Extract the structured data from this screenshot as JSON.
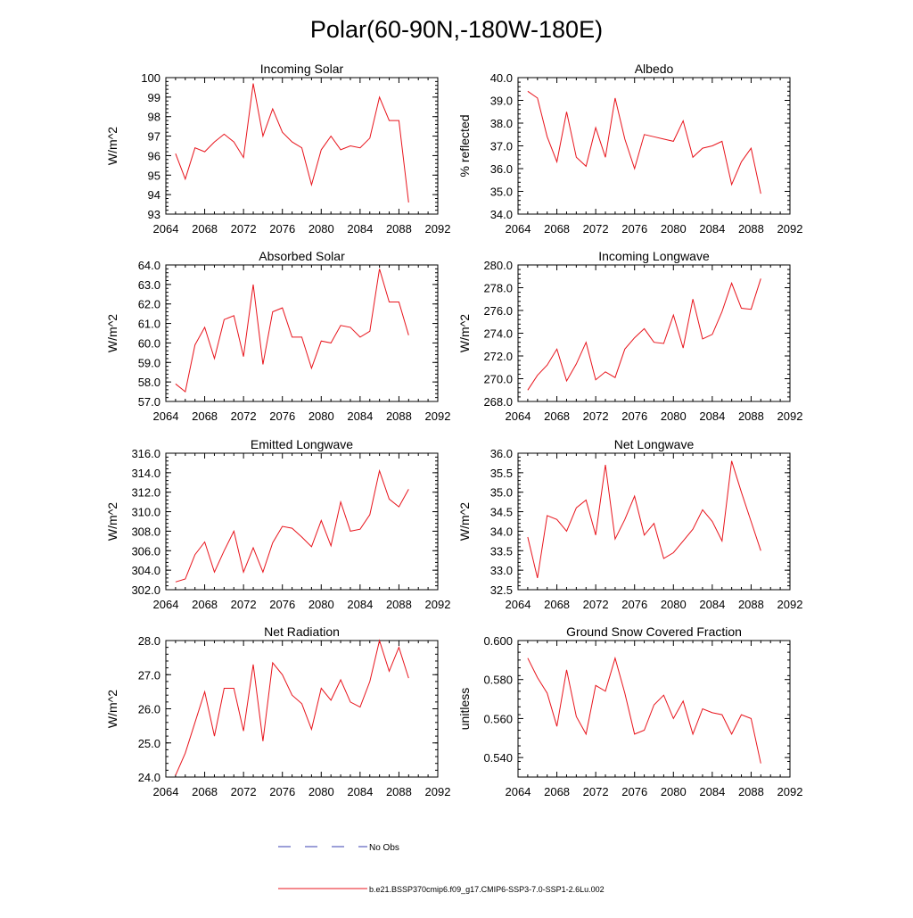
{
  "figure_title": "Polar(60-90N,-180W-180E)",
  "colors": {
    "model_line": "#e8141c",
    "obs_line": "#3a3fb0",
    "axis": "#000000"
  },
  "legend": {
    "obs_label": "No Obs",
    "model_label": "b.e21.BSSP370cmip6.f09_g17.CMIP6-SSP3-7.0-SSP1-2.6Lu.002"
  },
  "chart_data": [
    {
      "type": "line",
      "title": "Incoming Solar",
      "ylabel": "W/m^2",
      "xlim": [
        2064,
        2092
      ],
      "ylim": [
        93,
        100
      ],
      "xticks": [
        "2064",
        "2068",
        "2072",
        "2076",
        "2080",
        "2084",
        "2088",
        "2092"
      ],
      "yticks": [
        "93",
        "94",
        "95",
        "96",
        "97",
        "98",
        "99",
        "100"
      ],
      "x": [
        2065,
        2066,
        2067,
        2068,
        2069,
        2070,
        2071,
        2072,
        2073,
        2074,
        2075,
        2076,
        2077,
        2078,
        2079,
        2080,
        2081,
        2082,
        2083,
        2084,
        2085,
        2086,
        2087,
        2088,
        2089
      ],
      "series": [
        {
          "values": [
            96.1,
            94.8,
            96.4,
            96.2,
            96.7,
            97.1,
            96.7,
            95.9,
            99.7,
            97.0,
            98.4,
            97.2,
            96.7,
            96.4,
            94.5,
            96.3,
            97.0,
            96.3,
            96.5,
            96.4,
            96.9,
            99.0,
            97.8,
            97.8,
            93.6
          ]
        }
      ]
    },
    {
      "type": "line",
      "title": "Albedo",
      "ylabel": "% reflected",
      "xlim": [
        2064,
        2092
      ],
      "ylim": [
        34.0,
        40.0
      ],
      "xticks": [
        "2064",
        "2068",
        "2072",
        "2076",
        "2080",
        "2084",
        "2088",
        "2092"
      ],
      "yticks": [
        "34.0",
        "35.0",
        "36.0",
        "37.0",
        "38.0",
        "39.0",
        "40.0"
      ],
      "x": [
        2065,
        2066,
        2067,
        2068,
        2069,
        2070,
        2071,
        2072,
        2073,
        2074,
        2075,
        2076,
        2077,
        2078,
        2079,
        2080,
        2081,
        2082,
        2083,
        2084,
        2085,
        2086,
        2087,
        2088,
        2089
      ],
      "series": [
        {
          "values": [
            39.4,
            39.1,
            37.4,
            36.3,
            38.5,
            36.5,
            36.1,
            37.8,
            36.5,
            39.1,
            37.3,
            36.0,
            37.5,
            37.4,
            37.3,
            37.2,
            38.1,
            36.5,
            36.9,
            37.0,
            37.2,
            35.3,
            36.3,
            36.9,
            34.9
          ]
        }
      ]
    },
    {
      "type": "line",
      "title": "Absorbed Solar",
      "ylabel": "W/m^2",
      "xlim": [
        2064,
        2092
      ],
      "ylim": [
        57.0,
        64.0
      ],
      "xticks": [
        "2064",
        "2068",
        "2072",
        "2076",
        "2080",
        "2084",
        "2088",
        "2092"
      ],
      "yticks": [
        "57.0",
        "58.0",
        "59.0",
        "60.0",
        "61.0",
        "62.0",
        "63.0",
        "64.0"
      ],
      "x": [
        2065,
        2066,
        2067,
        2068,
        2069,
        2070,
        2071,
        2072,
        2073,
        2074,
        2075,
        2076,
        2077,
        2078,
        2079,
        2080,
        2081,
        2082,
        2083,
        2084,
        2085,
        2086,
        2087,
        2088,
        2089
      ],
      "series": [
        {
          "values": [
            57.9,
            57.5,
            59.9,
            60.8,
            59.2,
            61.2,
            61.4,
            59.3,
            63.0,
            58.9,
            61.6,
            61.8,
            60.3,
            60.3,
            58.7,
            60.1,
            60.0,
            60.9,
            60.8,
            60.3,
            60.6,
            63.8,
            62.1,
            62.1,
            60.4
          ]
        }
      ]
    },
    {
      "type": "line",
      "title": "Incoming Longwave",
      "ylabel": "W/m^2",
      "xlim": [
        2064,
        2092
      ],
      "ylim": [
        268.0,
        280.0
      ],
      "xticks": [
        "2064",
        "2068",
        "2072",
        "2076",
        "2080",
        "2084",
        "2088",
        "2092"
      ],
      "yticks": [
        "268.0",
        "270.0",
        "272.0",
        "274.0",
        "276.0",
        "278.0",
        "280.0"
      ],
      "x": [
        2065,
        2066,
        2067,
        2068,
        2069,
        2070,
        2071,
        2072,
        2073,
        2074,
        2075,
        2076,
        2077,
        2078,
        2079,
        2080,
        2081,
        2082,
        2083,
        2084,
        2085,
        2086,
        2087,
        2088,
        2089
      ],
      "series": [
        {
          "values": [
            269.0,
            270.3,
            271.2,
            272.6,
            269.8,
            271.3,
            273.2,
            269.9,
            270.6,
            270.1,
            272.6,
            273.6,
            274.4,
            273.2,
            273.1,
            275.6,
            272.7,
            277.0,
            273.5,
            273.9,
            275.9,
            278.4,
            276.2,
            276.1,
            278.8
          ]
        }
      ]
    },
    {
      "type": "line",
      "title": "Emitted Longwave",
      "ylabel": "W/m^2",
      "xlim": [
        2064,
        2092
      ],
      "ylim": [
        302.0,
        316.0
      ],
      "xticks": [
        "2064",
        "2068",
        "2072",
        "2076",
        "2080",
        "2084",
        "2088",
        "2092"
      ],
      "yticks": [
        "302.0",
        "304.0",
        "306.0",
        "308.0",
        "310.0",
        "312.0",
        "314.0",
        "316.0"
      ],
      "x": [
        2065,
        2066,
        2067,
        2068,
        2069,
        2070,
        2071,
        2072,
        2073,
        2074,
        2075,
        2076,
        2077,
        2078,
        2079,
        2080,
        2081,
        2082,
        2083,
        2084,
        2085,
        2086,
        2087,
        2088,
        2089
      ],
      "series": [
        {
          "values": [
            302.8,
            303.1,
            305.6,
            306.9,
            303.8,
            306.0,
            308.0,
            303.8,
            306.3,
            303.8,
            306.8,
            308.5,
            308.3,
            307.4,
            306.4,
            309.1,
            306.5,
            311.0,
            308.0,
            308.2,
            309.7,
            314.2,
            311.3,
            310.5,
            312.3
          ]
        }
      ]
    },
    {
      "type": "line",
      "title": "Net Longwave",
      "ylabel": "W/m^2",
      "xlim": [
        2064,
        2092
      ],
      "ylim": [
        32.5,
        36.0
      ],
      "xticks": [
        "2064",
        "2068",
        "2072",
        "2076",
        "2080",
        "2084",
        "2088",
        "2092"
      ],
      "yticks": [
        "32.5",
        "33.0",
        "33.5",
        "34.0",
        "34.5",
        "35.0",
        "35.5",
        "36.0"
      ],
      "x": [
        2065,
        2066,
        2067,
        2068,
        2069,
        2070,
        2071,
        2072,
        2073,
        2074,
        2075,
        2076,
        2077,
        2078,
        2079,
        2080,
        2081,
        2082,
        2083,
        2084,
        2085,
        2086,
        2087,
        2088,
        2089
      ],
      "series": [
        {
          "values": [
            33.85,
            32.8,
            34.4,
            34.3,
            34.0,
            34.6,
            34.8,
            33.9,
            35.7,
            33.8,
            34.3,
            34.9,
            33.9,
            34.2,
            33.3,
            33.45,
            33.75,
            34.05,
            34.55,
            34.25,
            33.75,
            35.8,
            35.0,
            34.25,
            33.5
          ]
        }
      ]
    },
    {
      "type": "line",
      "title": "Net Radiation",
      "ylabel": "W/m^2",
      "xlim": [
        2064,
        2092
      ],
      "ylim": [
        24.0,
        28.0
      ],
      "xticks": [
        "2064",
        "2068",
        "2072",
        "2076",
        "2080",
        "2084",
        "2088",
        "2092"
      ],
      "yticks": [
        "24.0",
        "25.0",
        "26.0",
        "27.0",
        "28.0"
      ],
      "x": [
        2065,
        2066,
        2067,
        2068,
        2069,
        2070,
        2071,
        2072,
        2073,
        2074,
        2075,
        2076,
        2077,
        2078,
        2079,
        2080,
        2081,
        2082,
        2083,
        2084,
        2085,
        2086,
        2087,
        2088,
        2089
      ],
      "series": [
        {
          "values": [
            24.05,
            24.7,
            25.6,
            26.5,
            25.2,
            26.6,
            26.6,
            25.35,
            27.3,
            25.05,
            27.35,
            27.0,
            26.4,
            26.15,
            25.4,
            26.6,
            26.25,
            26.85,
            26.2,
            26.05,
            26.8,
            28.0,
            27.1,
            27.8,
            26.9
          ]
        }
      ]
    },
    {
      "type": "line",
      "title": "Ground Snow Covered Fraction",
      "ylabel": "unitless",
      "xlim": [
        2064,
        2092
      ],
      "ylim": [
        0.53,
        0.6
      ],
      "xticks": [
        "2064",
        "2068",
        "2072",
        "2076",
        "2080",
        "2084",
        "2088",
        "2092"
      ],
      "yticks": [
        "0.540",
        "0.560",
        "0.580",
        "0.600"
      ],
      "ytick_values": [
        0.54,
        0.56,
        0.58,
        0.6
      ],
      "x": [
        2065,
        2066,
        2067,
        2068,
        2069,
        2070,
        2071,
        2072,
        2073,
        2074,
        2075,
        2076,
        2077,
        2078,
        2079,
        2080,
        2081,
        2082,
        2083,
        2084,
        2085,
        2086,
        2087,
        2088,
        2089
      ],
      "series": [
        {
          "values": [
            0.591,
            0.581,
            0.573,
            0.556,
            0.585,
            0.561,
            0.552,
            0.577,
            0.574,
            0.591,
            0.573,
            0.552,
            0.554,
            0.567,
            0.572,
            0.56,
            0.569,
            0.552,
            0.565,
            0.563,
            0.562,
            0.552,
            0.562,
            0.56,
            0.537
          ]
        }
      ]
    }
  ]
}
